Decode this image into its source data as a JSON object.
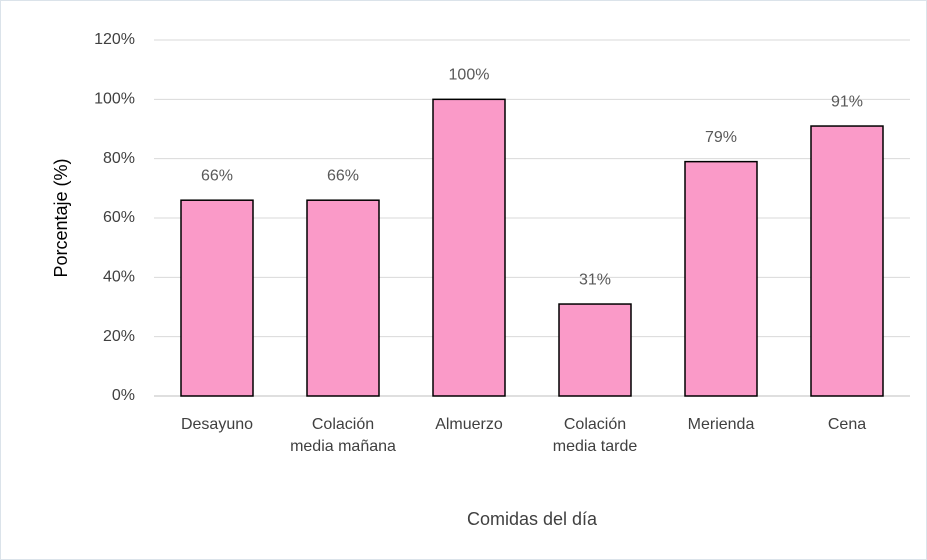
{
  "chart_data": {
    "type": "bar",
    "categories": [
      "Desayuno",
      "Colación media mañana",
      "Almuerzo",
      "Colación media tarde",
      "Merienda",
      "Cena"
    ],
    "values": [
      66,
      66,
      100,
      31,
      79,
      91
    ],
    "value_labels": [
      "66%",
      "66%",
      "100%",
      "31%",
      "79%",
      "91%"
    ],
    "color": "#fa9ac8",
    "ylim": [
      0,
      120
    ],
    "yticks": [
      {
        "value": 0,
        "label": "0%"
      },
      {
        "value": 20,
        "label": "20%"
      },
      {
        "value": 40,
        "label": "40%"
      },
      {
        "value": 60,
        "label": "60%"
      },
      {
        "value": 80,
        "label": "80%"
      },
      {
        "value": 100,
        "label": "100%"
      },
      {
        "value": 120,
        "label": "120%"
      }
    ],
    "ylabel": "Porcentaje (%)",
    "xlabel": "Comidas del día",
    "grid": true
  }
}
